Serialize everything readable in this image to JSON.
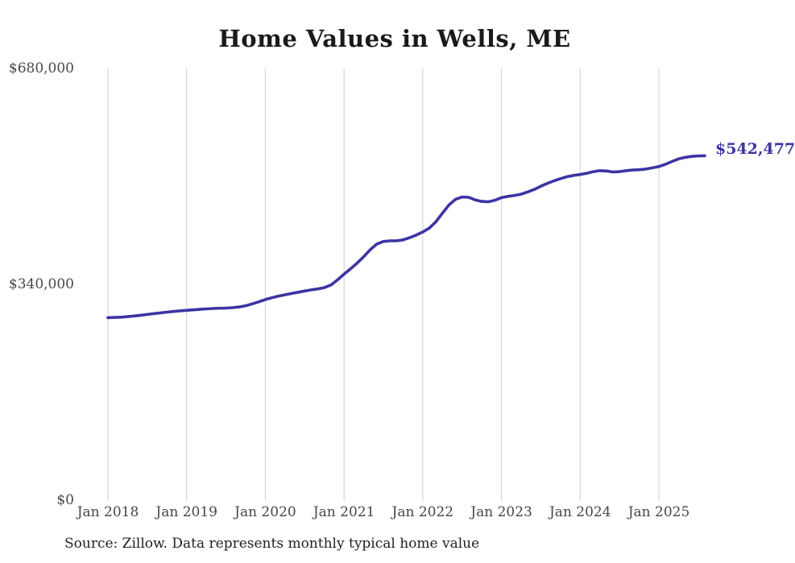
{
  "title": "Home Values in Wells, ME",
  "source_note": "Source: Zillow. Data represents monthly typical home value",
  "colors": {
    "line": "#3c34a4",
    "grid": "#cfcfcf",
    "title_text": "#1a1a1a",
    "axis_text": "#474747",
    "note_text": "#212121",
    "end_label_text": "#3b35a2"
  },
  "chart_data": {
    "type": "line",
    "title": "Home Values in Wells, ME",
    "xlabel": "",
    "ylabel": "",
    "ylim": [
      0,
      680000
    ],
    "grid": "vertical-only",
    "legend": "none",
    "x_start_month": "2018-01",
    "x_end_month": "2025-08",
    "x_tick_labels": [
      "Jan 2018",
      "Jan 2019",
      "Jan 2020",
      "Jan 2021",
      "Jan 2022",
      "Jan 2023",
      "Jan 2024",
      "Jan 2025"
    ],
    "x_tick_month_indices": [
      0,
      12,
      24,
      36,
      48,
      60,
      72,
      84
    ],
    "y_ticks": [
      {
        "label": "$0",
        "value": 0
      },
      {
        "label": "$340,000",
        "value": 340000
      },
      {
        "label": "$680,000",
        "value": 680000
      }
    ],
    "latest_value": 542477,
    "latest_value_label": "$542,477",
    "series": [
      {
        "name": "Monthly typical home value",
        "start_month": "2018-01",
        "values": [
          287500,
          287800,
          288300,
          289100,
          290100,
          291300,
          292500,
          293800,
          295000,
          296200,
          297300,
          298200,
          299000,
          299800,
          300600,
          301300,
          301900,
          302300,
          302600,
          303200,
          304400,
          306300,
          309200,
          312500,
          316000,
          319000,
          321500,
          323500,
          325500,
          327600,
          329500,
          331200,
          332800,
          334800,
          339000,
          347000,
          356000,
          364500,
          373500,
          383500,
          394500,
          403500,
          407500,
          408500,
          408500,
          410000,
          413500,
          417500,
          422500,
          428500,
          438500,
          452000,
          465000,
          474000,
          477500,
          477000,
          473000,
          470500,
          470000,
          472500,
          476500,
          478500,
          480000,
          482000,
          485500,
          489500,
          494500,
          499000,
          503000,
          506500,
          509500,
          511500,
          513000,
          515000,
          517500,
          519000,
          518500,
          517000,
          517500,
          519000,
          520000,
          520500,
          521500,
          523500,
          525500,
          529000,
          533500,
          537500,
          540000,
          541500,
          542200,
          542477
        ]
      }
    ]
  }
}
